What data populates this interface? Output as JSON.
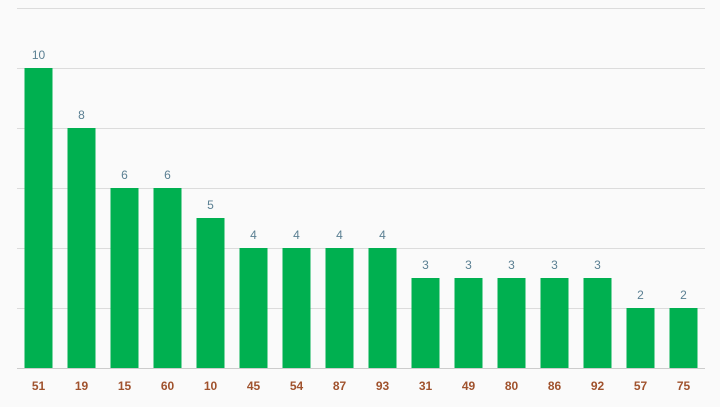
{
  "chart_data": {
    "type": "bar",
    "categories": [
      "51",
      "19",
      "15",
      "60",
      "10",
      "45",
      "54",
      "87",
      "93",
      "31",
      "49",
      "80",
      "86",
      "92",
      "57",
      "75"
    ],
    "values": [
      10,
      8,
      6,
      6,
      5,
      4,
      4,
      4,
      4,
      3,
      3,
      3,
      3,
      3,
      2,
      2
    ],
    "ylim": [
      0,
      12
    ],
    "grid": true,
    "show_value_labels": true,
    "colors": {
      "bar": "#00b050",
      "value_label": "#5a7f92",
      "category_label": "#a0522d",
      "grid": "#dcdcdc",
      "background": "#fafafa"
    }
  }
}
